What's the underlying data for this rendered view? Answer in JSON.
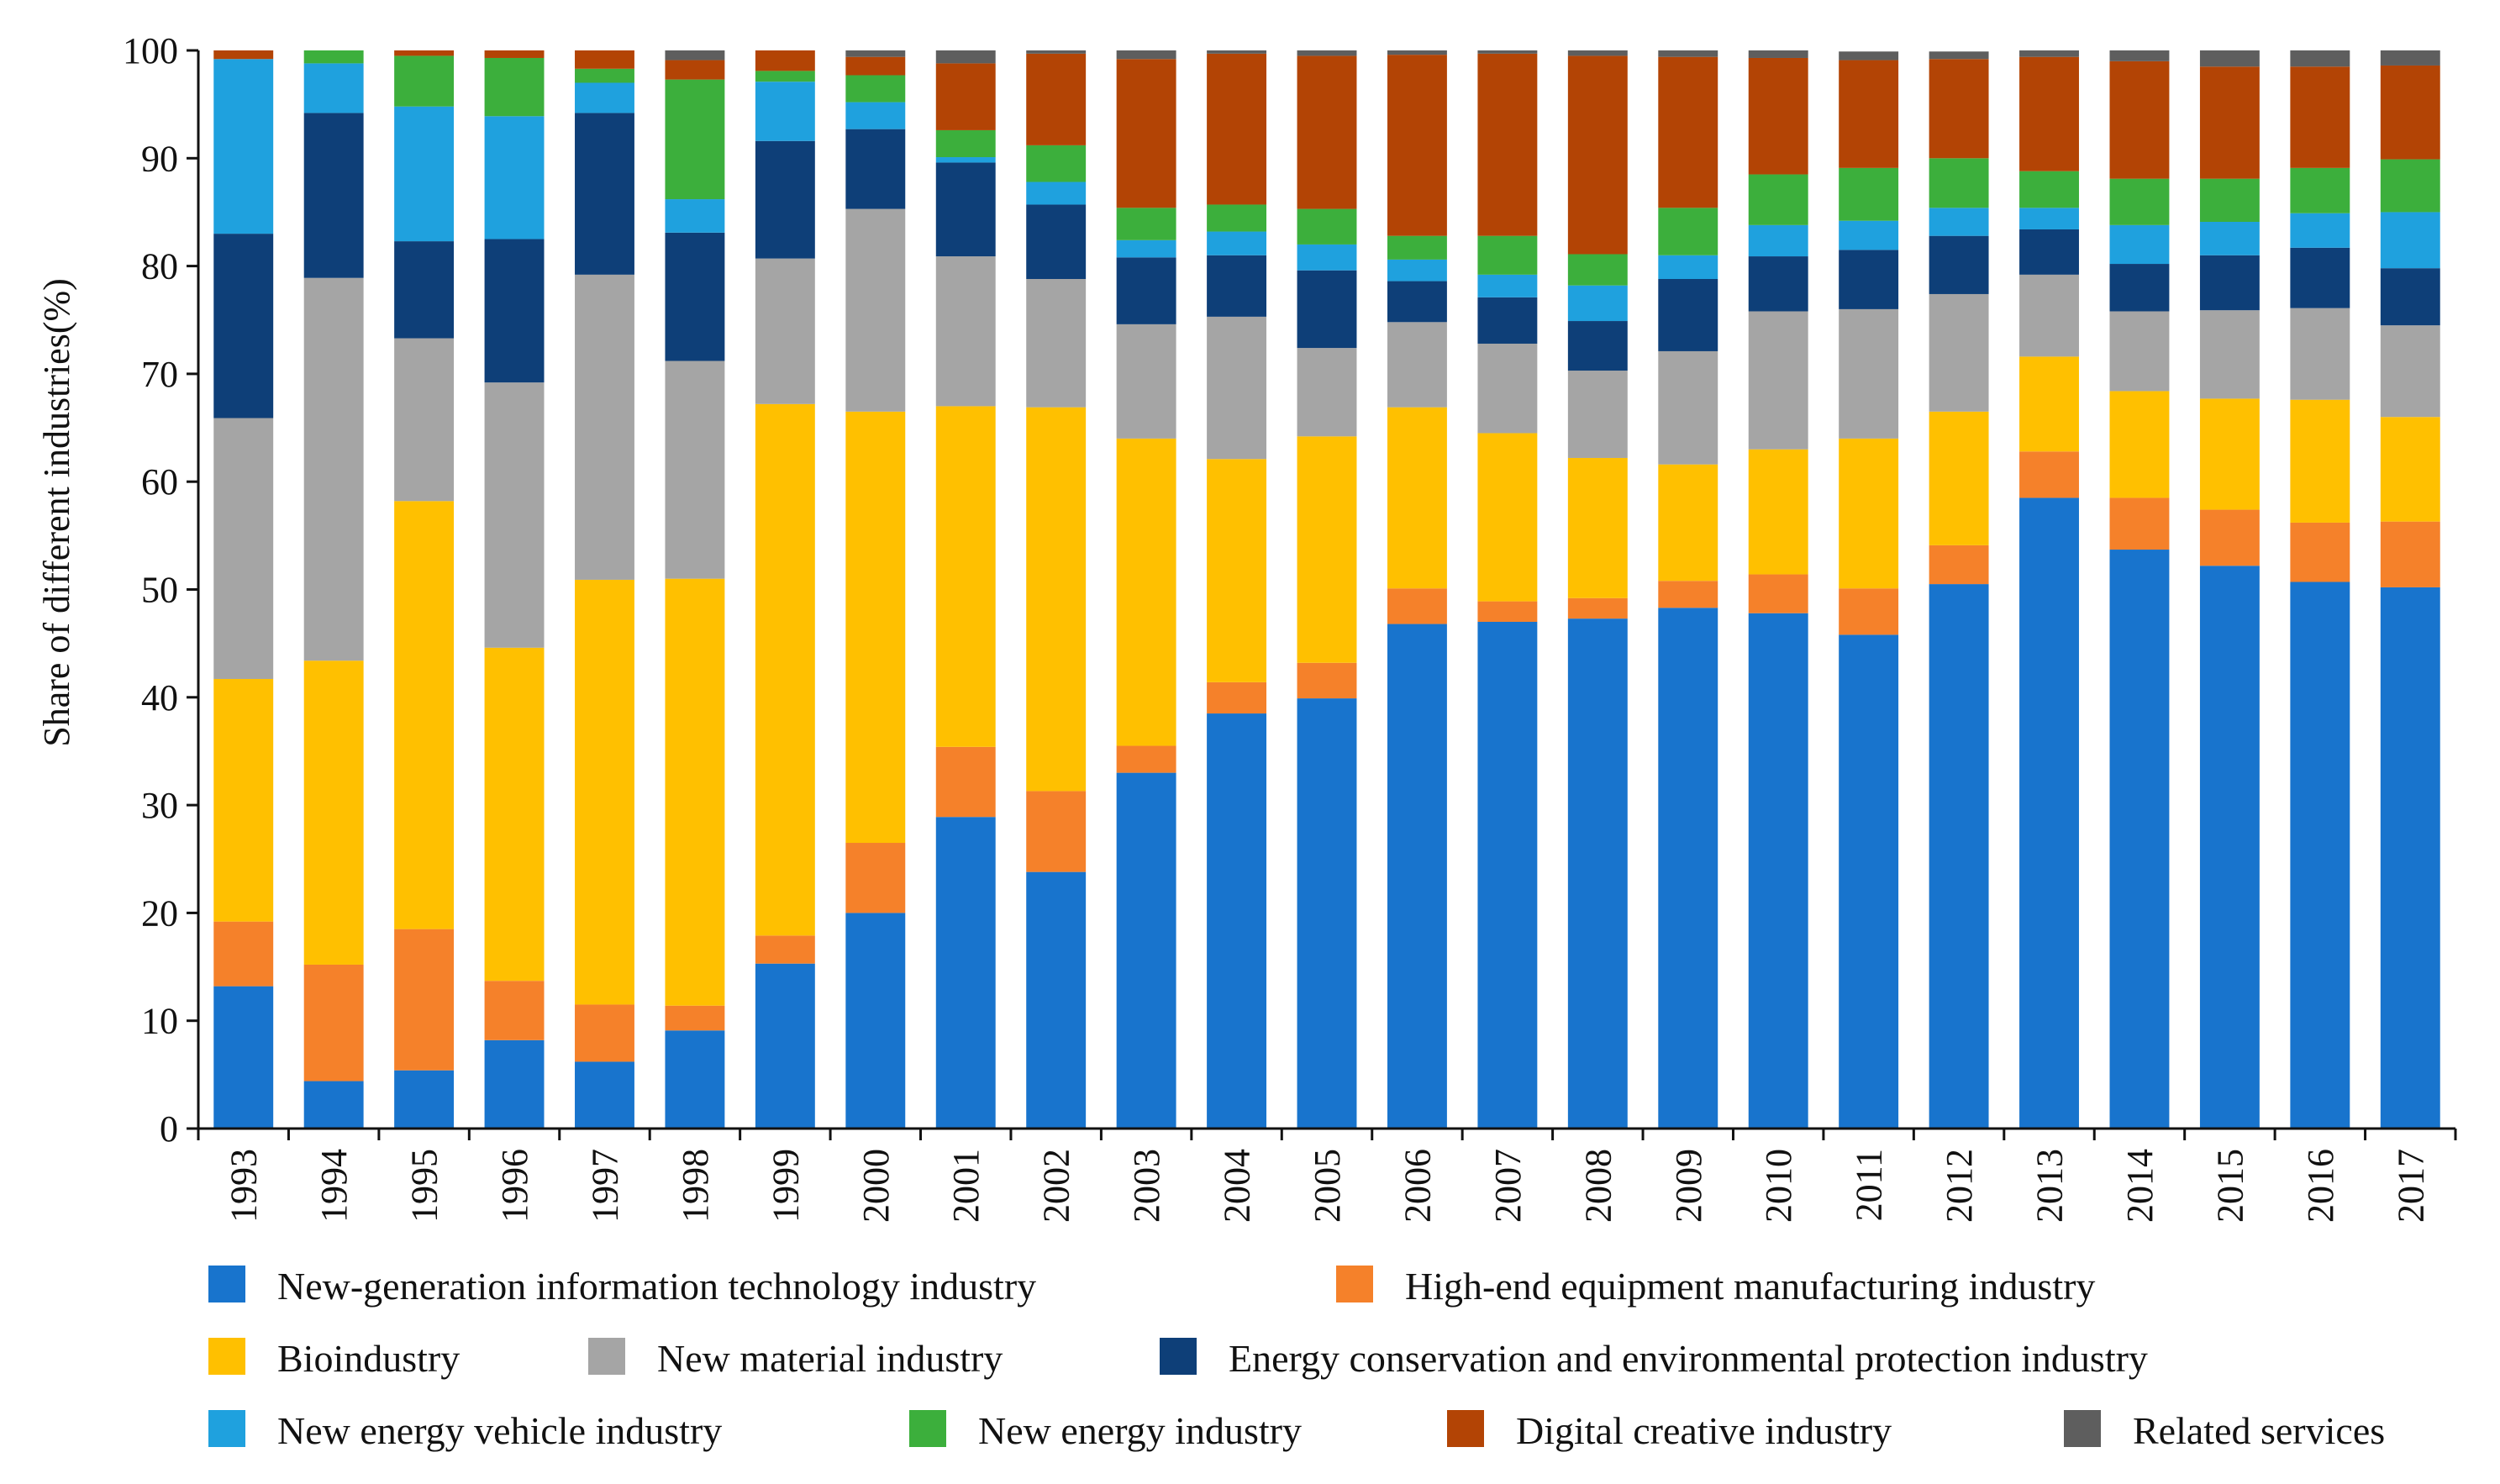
{
  "chart_data": {
    "type": "bar",
    "stacked": true,
    "title": "",
    "xlabel": "",
    "ylabel": "Share of different industries(%)",
    "ylim": [
      0,
      100
    ],
    "yticks": [
      "0",
      "10",
      "20",
      "30",
      "40",
      "50",
      "60",
      "70",
      "80",
      "90",
      "100"
    ],
    "grid": false,
    "legend_position": "bottom",
    "categories": [
      "1993",
      "1994",
      "1995",
      "1996",
      "1997",
      "1998",
      "1999",
      "2000",
      "2001",
      "2002",
      "2003",
      "2004",
      "2005",
      "2006",
      "2007",
      "2008",
      "2009",
      "2010",
      "2011",
      "2012",
      "2013",
      "2014",
      "2015",
      "2016",
      "2017"
    ],
    "series": [
      {
        "name": "New-generation information technology industry",
        "color": "#1874CD",
        "values": [
          13.2,
          4.4,
          5.4,
          8.2,
          6.2,
          9.1,
          15.3,
          20.0,
          28.9,
          23.8,
          33.0,
          38.5,
          39.9,
          46.8,
          47.0,
          47.3,
          48.3,
          47.8,
          45.8,
          50.5,
          58.5,
          53.7,
          52.2,
          50.7,
          50.2
        ]
      },
      {
        "name": "High-end equipment manufacturing industry",
        "color": "#F5812A",
        "values": [
          6.0,
          10.8,
          13.1,
          5.5,
          5.3,
          2.3,
          2.6,
          6.5,
          6.5,
          7.5,
          2.5,
          2.9,
          3.3,
          3.3,
          1.9,
          1.9,
          2.5,
          3.6,
          4.3,
          3.6,
          4.3,
          4.8,
          5.2,
          5.5,
          6.1
        ]
      },
      {
        "name": "Bioindustry",
        "color": "#FFC000",
        "values": [
          22.5,
          28.2,
          39.7,
          30.9,
          39.4,
          39.6,
          49.3,
          40.0,
          31.6,
          35.6,
          28.5,
          20.7,
          21.0,
          16.8,
          15.6,
          13.0,
          10.8,
          11.6,
          13.9,
          12.4,
          8.8,
          9.9,
          10.3,
          11.4,
          9.7
        ]
      },
      {
        "name": "New material industry",
        "color": "#A5A5A5",
        "values": [
          24.2,
          35.5,
          15.1,
          24.6,
          28.3,
          20.2,
          13.5,
          18.8,
          13.9,
          11.9,
          10.6,
          13.2,
          8.2,
          7.9,
          8.3,
          8.1,
          10.5,
          12.8,
          12.0,
          10.9,
          7.6,
          7.4,
          8.2,
          8.5,
          8.5
        ]
      },
      {
        "name": "Energy conservation and environmental protection industry",
        "color": "#0E3F78",
        "values": [
          17.1,
          15.3,
          9.0,
          13.3,
          15.0,
          11.9,
          10.9,
          7.4,
          8.7,
          6.9,
          6.2,
          5.7,
          7.2,
          3.8,
          4.3,
          4.6,
          6.7,
          5.1,
          5.5,
          5.4,
          4.2,
          4.4,
          5.1,
          5.6,
          5.3
        ]
      },
      {
        "name": "New energy vehicle industry",
        "color": "#1FA1DE",
        "values": [
          16.2,
          4.6,
          12.5,
          11.4,
          2.8,
          3.1,
          5.5,
          2.5,
          0.5,
          2.1,
          1.6,
          2.2,
          2.4,
          2.0,
          2.1,
          3.3,
          2.2,
          2.9,
          2.7,
          2.6,
          2.0,
          3.6,
          3.1,
          3.2,
          5.2
        ]
      },
      {
        "name": "New energy industry",
        "color": "#3CAF3C",
        "values": [
          0.0,
          1.4,
          4.7,
          5.4,
          1.3,
          11.1,
          1.0,
          2.5,
          2.5,
          3.4,
          3.0,
          2.5,
          3.3,
          2.2,
          3.6,
          2.9,
          4.4,
          4.7,
          4.9,
          4.6,
          3.4,
          4.3,
          4.0,
          4.2,
          4.9
        ]
      },
      {
        "name": "Digital creative industry",
        "color": "#B34405",
        "values": [
          1.0,
          0.0,
          0.7,
          0.7,
          2.1,
          1.8,
          1.9,
          1.7,
          6.2,
          8.5,
          13.8,
          14.0,
          14.2,
          16.8,
          16.9,
          18.4,
          14.0,
          10.8,
          10.0,
          9.2,
          10.6,
          10.9,
          10.4,
          9.4,
          8.7
        ]
      },
      {
        "name": "Related services",
        "color": "#5E5E5E",
        "values": [
          0.0,
          0.0,
          0.0,
          0.0,
          0.0,
          1.2,
          0.0,
          0.8,
          1.3,
          0.5,
          0.8,
          0.6,
          0.7,
          0.6,
          0.4,
          0.7,
          0.8,
          0.7,
          0.8,
          0.7,
          0.8,
          1.0,
          1.8,
          1.7,
          1.6
        ]
      }
    ]
  }
}
